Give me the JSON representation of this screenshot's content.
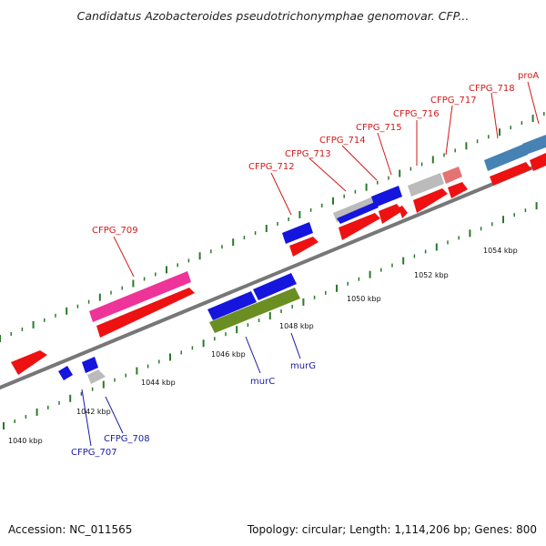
{
  "title": "Candidatus Azobacteroides pseudotrichonymphae genomovar. CFP...",
  "footer": {
    "accession": "Accession: NC_011565",
    "summary": "Topology: circular; Length: 1,114,206 bp; Genes: 800"
  },
  "scale_labels": [
    "1040 kbp",
    "1042 kbp",
    "1044 kbp",
    "1046 kbp",
    "1048 kbp",
    "1050 kbp",
    "1052 kbp",
    "1054 kbp"
  ],
  "upper_gene_labels": [
    "CFPG_709",
    "CFPG_712",
    "CFPG_713",
    "CFPG_714",
    "CFPG_715",
    "CFPG_716",
    "CFPG_717",
    "CFPG_718",
    "proA"
  ],
  "lower_gene_labels": [
    "murC",
    "murG",
    "CFPG_708",
    "CFPG_707"
  ],
  "colors": {
    "forward_cds": "#ee1111",
    "reverse_cds": "#1515dd",
    "pink": "#ee3399",
    "olive": "#6b8e23",
    "gray": "#bbbbbb",
    "steelblue": "#4682b4",
    "lightred": "#e57373",
    "backbone": "#777777",
    "tick": "#2a7a2a",
    "upper_label": "#d21a1a",
    "lower_label": "#1a1aa8"
  }
}
